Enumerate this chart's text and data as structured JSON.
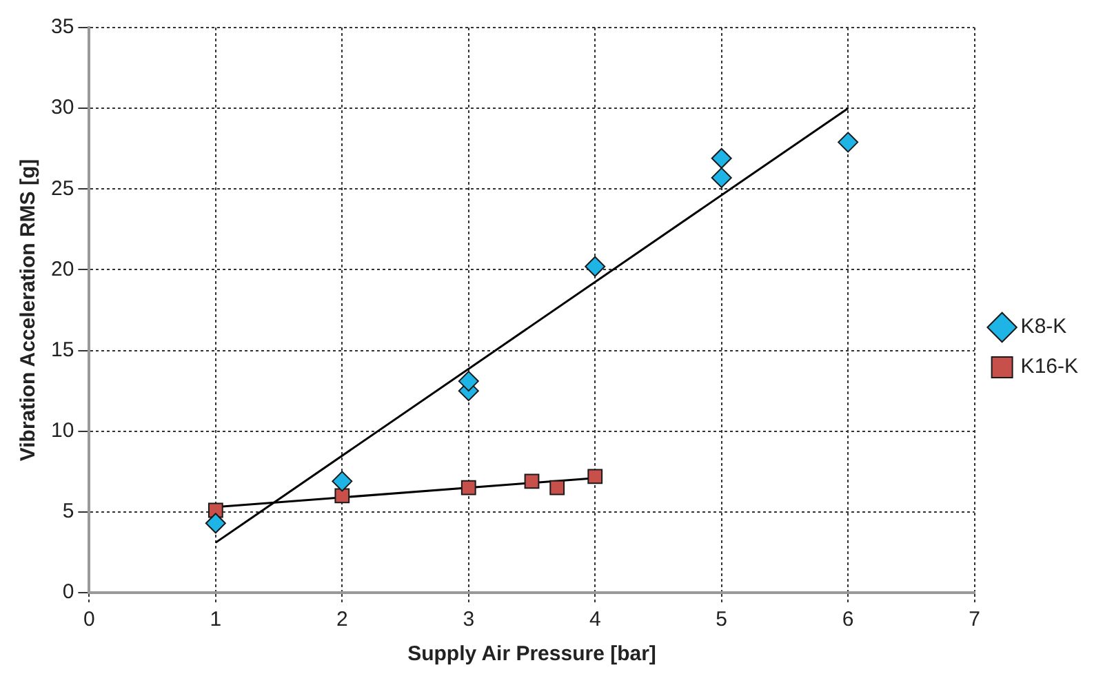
{
  "chart_data": {
    "type": "scatter",
    "xlabel": "Supply Air Pressure [bar]",
    "ylabel": "Vibration Acceleration RMS [g]",
    "xlim": [
      0,
      7
    ],
    "xticks": [
      0,
      1,
      2,
      3,
      4,
      5,
      6,
      7
    ],
    "ylim": [
      0,
      35
    ],
    "yticks": [
      0,
      5,
      10,
      15,
      20,
      25,
      30,
      35
    ],
    "grid": true,
    "legend": "right",
    "series": [
      {
        "name": "K8-K",
        "color": "#1eb4e6",
        "marker": "diamond",
        "x": [
          1,
          2,
          3,
          3,
          4,
          5,
          5,
          6
        ],
        "values": [
          4.3,
          6.9,
          12.5,
          13.1,
          20.2,
          25.7,
          26.9,
          27.9
        ]
      },
      {
        "name": "K16-K",
        "color": "#c8504b",
        "marker": "square",
        "x": [
          1,
          2,
          3,
          3.5,
          3.7,
          4
        ],
        "values": [
          5.1,
          6.0,
          6.5,
          6.9,
          6.5,
          7.2
        ]
      },
      {
        "type": "line",
        "color": "#000000",
        "marker": "none",
        "x": [
          1,
          6
        ],
        "values": [
          3.1,
          30.0
        ]
      },
      {
        "type": "line",
        "color": "#000000",
        "marker": "none",
        "x": [
          1,
          4
        ],
        "values": [
          5.3,
          7.1
        ]
      }
    ]
  }
}
